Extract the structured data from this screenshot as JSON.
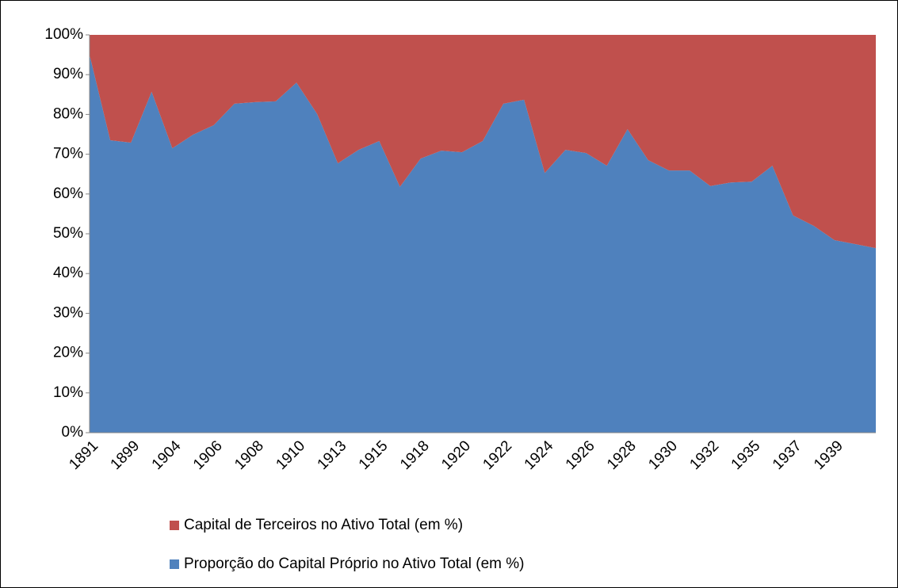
{
  "chart_data": {
    "type": "stacked-area",
    "categories": [
      "1891",
      null,
      "1899",
      null,
      "1904",
      null,
      "1906",
      null,
      "1908",
      null,
      "1910",
      null,
      "1913",
      null,
      "1915",
      null,
      "1918",
      null,
      "1920",
      null,
      "1922",
      null,
      "1924",
      null,
      "1926",
      null,
      "1928",
      null,
      "1930",
      null,
      "1932",
      null,
      "1935",
      null,
      "1937",
      null,
      "1939",
      null,
      null
    ],
    "series": [
      {
        "name": "Proporção do Capital Próprio no Ativo Total (em %)",
        "color": "#4f81bd",
        "values": [
          95,
          73.5,
          72.9,
          85.7,
          71.5,
          74.9,
          77.3,
          82.7,
          83.1,
          83.3,
          88,
          80.1,
          67.7,
          71.1,
          73.3,
          61.8,
          68.9,
          70.9,
          70.5,
          73.3,
          82.7,
          83.7,
          65.3,
          71.1,
          70.3,
          67.1,
          76.3,
          68.5,
          65.9,
          65.9,
          62,
          62.9,
          63.1,
          67.1,
          54.6,
          52,
          48.4,
          47.4,
          46.4
        ]
      },
      {
        "name": "Capital de Terceiros no Ativo Total (em %)",
        "color": "#c0504d",
        "values": [
          5,
          26.5,
          27.1,
          14.3,
          28.5,
          25.1,
          22.7,
          17.3,
          16.9,
          16.7,
          12,
          19.9,
          32.3,
          28.9,
          26.7,
          38.2,
          31.1,
          29.1,
          29.5,
          26.7,
          17.3,
          16.3,
          34.7,
          28.9,
          29.7,
          32.9,
          23.7,
          31.5,
          34.1,
          34.1,
          38,
          37.1,
          36.9,
          32.9,
          45.4,
          48,
          51.6,
          52.6,
          53.6
        ]
      }
    ],
    "ylim": [
      0,
      100
    ],
    "yticks": [
      {
        "value": 0,
        "label": "0%"
      },
      {
        "value": 10,
        "label": "10%"
      },
      {
        "value": 20,
        "label": "20%"
      },
      {
        "value": 30,
        "label": "30%"
      },
      {
        "value": 40,
        "label": "40%"
      },
      {
        "value": 50,
        "label": "50%"
      },
      {
        "value": 60,
        "label": "60%"
      },
      {
        "value": 70,
        "label": "70%"
      },
      {
        "value": 80,
        "label": "80%"
      },
      {
        "value": 90,
        "label": "90%"
      },
      {
        "value": 100,
        "label": "100%"
      }
    ]
  }
}
